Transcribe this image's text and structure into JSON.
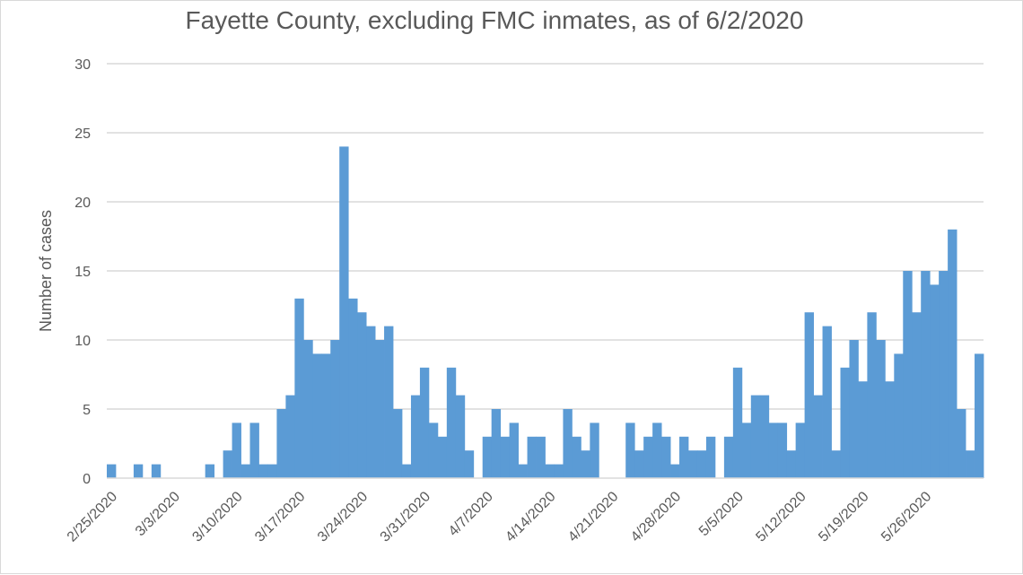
{
  "chart_data": {
    "type": "bar",
    "title": "Fayette County, excluding FMC inmates, as of 6/2/2020",
    "xlabel": "",
    "ylabel": "Number of cases",
    "ylim": [
      0,
      30
    ],
    "yticks": [
      0,
      5,
      10,
      15,
      20,
      25,
      30
    ],
    "grid": true,
    "bar_color": "#5b9bd5",
    "x_tick_labels": [
      "2/25/2020",
      "3/3/2020",
      "3/10/2020",
      "3/17/2020",
      "3/24/2020",
      "3/31/2020",
      "4/7/2020",
      "4/14/2020",
      "4/21/2020",
      "4/28/2020",
      "5/5/2020",
      "5/12/2020",
      "5/19/2020",
      "5/26/2020"
    ],
    "start_date": "2/25/2020",
    "values": [
      1,
      0,
      0,
      1,
      0,
      1,
      0,
      0,
      0,
      0,
      0,
      1,
      0,
      2,
      4,
      1,
      4,
      1,
      1,
      5,
      6,
      13,
      10,
      9,
      9,
      10,
      24,
      13,
      12,
      11,
      10,
      11,
      5,
      1,
      6,
      8,
      4,
      3,
      8,
      6,
      2,
      0,
      3,
      5,
      3,
      4,
      1,
      3,
      3,
      1,
      1,
      5,
      3,
      2,
      4,
      0,
      0,
      0,
      4,
      2,
      3,
      4,
      3,
      1,
      3,
      2,
      2,
      3,
      0,
      3,
      8,
      4,
      6,
      6,
      4,
      4,
      2,
      4,
      12,
      6,
      11,
      2,
      8,
      10,
      7,
      12,
      10,
      7,
      9,
      15,
      12,
      15,
      14,
      15,
      18,
      5,
      2,
      9
    ]
  }
}
